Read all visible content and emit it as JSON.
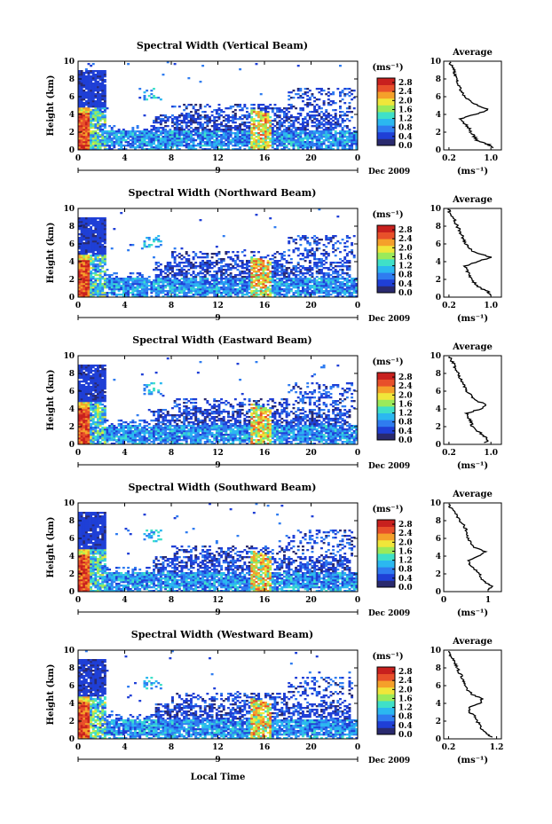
{
  "chart_data": {
    "type": "heatmap",
    "colorbar": {
      "unit": "(ms⁻¹)",
      "ticks": [
        "0.0",
        "0.4",
        "0.8",
        "1.2",
        "1.6",
        "2.0",
        "2.4",
        "2.8"
      ],
      "range": [
        0,
        3.0
      ],
      "colors": [
        "#2a2a6e",
        "#1f3fd6",
        "#2f7cf0",
        "#2bb8f0",
        "#3fe0c8",
        "#9bea5a",
        "#f0e63a",
        "#f5a02a",
        "#e8502a",
        "#c8201e"
      ]
    },
    "x_ticks": [
      "0",
      "4",
      "8",
      "12",
      "16",
      "20",
      "0"
    ],
    "x_range": [
      0,
      24
    ],
    "date_label": "Dec 2009",
    "day_marker": "9",
    "y_ticks": [
      "0",
      "2",
      "4",
      "6",
      "8",
      "10"
    ],
    "y_range": [
      0,
      10
    ],
    "ylabel": "Height (km)",
    "xlabel": "Local Time",
    "avg_title": "Average",
    "avg_unit": "(ms⁻¹)",
    "panels": [
      {
        "title": "Spectral Width (Vertical Beam)",
        "avg_xticks": [
          "0.2",
          "1.0"
        ],
        "avg_xrange": [
          0.1,
          1.2
        ],
        "avg_xtick_values": [
          0.2,
          1.0
        ],
        "avg_profile": {
          "height": [
            0.2,
            0.6,
            1.0,
            1.5,
            2.0,
            2.5,
            3.0,
            3.5,
            4.0,
            4.5,
            5.0,
            5.5,
            6.0,
            6.5,
            7.0,
            7.5,
            8.0,
            8.5,
            9.0,
            9.5,
            10.0
          ],
          "value": [
            1.05,
            0.95,
            0.75,
            0.68,
            0.62,
            0.58,
            0.5,
            0.42,
            0.7,
            0.95,
            0.75,
            0.6,
            0.5,
            0.45,
            0.42,
            0.38,
            0.35,
            0.32,
            0.3,
            0.25,
            0.2
          ]
        }
      },
      {
        "title": "Spectral Width (Northward Beam)",
        "avg_xticks": [
          "0.2",
          "1.0"
        ],
        "avg_xrange": [
          0.1,
          1.2
        ],
        "avg_xtick_values": [
          0.2,
          1.0
        ],
        "avg_profile": {
          "height": [
            0.2,
            0.6,
            1.0,
            1.5,
            2.0,
            2.5,
            3.0,
            3.5,
            4.0,
            4.5,
            5.0,
            5.5,
            6.0,
            6.5,
            7.0,
            7.5,
            8.0,
            8.5,
            9.0,
            9.5,
            10.0
          ],
          "value": [
            1.0,
            0.95,
            0.8,
            0.7,
            0.62,
            0.6,
            0.55,
            0.5,
            0.75,
            1.0,
            0.7,
            0.6,
            0.52,
            0.48,
            0.45,
            0.4,
            0.36,
            0.32,
            0.28,
            0.22,
            0.2
          ]
        }
      },
      {
        "title": "Spectral Width (Eastward Beam)",
        "avg_xticks": [
          "0.2",
          "1.0"
        ],
        "avg_xrange": [
          0.1,
          1.2
        ],
        "avg_xtick_values": [
          0.2,
          1.0
        ],
        "avg_profile": {
          "height": [
            0.2,
            0.6,
            1.0,
            1.5,
            2.0,
            2.5,
            3.0,
            3.5,
            4.0,
            4.5,
            5.0,
            5.5,
            6.0,
            6.5,
            7.0,
            7.5,
            8.0,
            8.5,
            9.0,
            9.5,
            10.0
          ],
          "value": [
            0.9,
            0.95,
            0.85,
            0.75,
            0.65,
            0.62,
            0.58,
            0.55,
            0.8,
            0.9,
            0.7,
            0.62,
            0.55,
            0.5,
            0.45,
            0.42,
            0.38,
            0.33,
            0.3,
            0.24,
            0.2
          ]
        }
      },
      {
        "title": "Spectral Width (Southward Beam)",
        "avg_xticks": [
          "0",
          "1"
        ],
        "avg_xrange": [
          0,
          1.3
        ],
        "avg_xtick_values": [
          0,
          1
        ],
        "avg_profile": {
          "height": [
            0.2,
            0.6,
            1.0,
            1.5,
            2.0,
            2.5,
            3.0,
            3.5,
            4.0,
            4.5,
            5.0,
            5.5,
            6.0,
            6.5,
            7.0,
            7.5,
            8.0,
            8.5,
            9.0,
            9.5,
            10.0
          ],
          "value": [
            1.0,
            1.1,
            0.95,
            0.85,
            0.8,
            0.7,
            0.6,
            0.55,
            0.8,
            0.95,
            0.7,
            0.6,
            0.55,
            0.5,
            0.5,
            0.45,
            0.35,
            0.3,
            0.25,
            0.15,
            0.1
          ]
        }
      },
      {
        "title": "Spectral Width (Westward Beam)",
        "avg_xticks": [
          "0.2",
          "1.2"
        ],
        "avg_xrange": [
          0.1,
          1.3
        ],
        "avg_xtick_values": [
          0.2,
          1.2
        ],
        "avg_profile": {
          "height": [
            0.2,
            0.6,
            1.0,
            1.5,
            2.0,
            2.5,
            3.0,
            3.5,
            4.0,
            4.5,
            5.0,
            5.5,
            6.0,
            6.5,
            7.0,
            7.5,
            8.0,
            8.5,
            9.0,
            9.5,
            10.0
          ],
          "value": [
            1.1,
            1.0,
            0.9,
            0.85,
            0.8,
            0.75,
            0.65,
            0.6,
            0.85,
            0.9,
            0.7,
            0.6,
            0.55,
            0.5,
            0.48,
            0.42,
            0.38,
            0.33,
            0.28,
            0.22,
            0.2
          ]
        }
      }
    ]
  }
}
